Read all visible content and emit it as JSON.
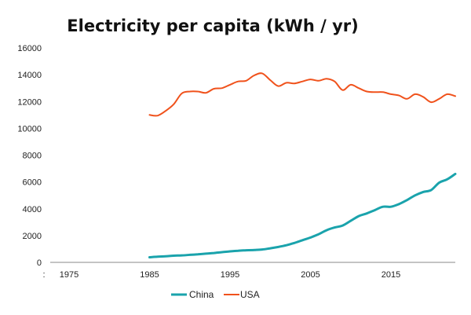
{
  "chart_data": {
    "type": "line",
    "title": "Electricity per capita (kWh / yr)",
    "xlabel": "",
    "ylabel": "",
    "xlim": [
      1972,
      2025
    ],
    "ylim": [
      0,
      16000
    ],
    "yticks": [
      0,
      2000,
      4000,
      6000,
      8000,
      10000,
      12000,
      14000,
      16000
    ],
    "ytick_labels": [
      "0",
      "2000",
      "4000",
      "6000",
      "8000",
      "10000",
      "12000",
      "14000",
      "16000"
    ],
    "xticks": [
      1972,
      1975,
      1985,
      1995,
      2005,
      2015
    ],
    "xtick_labels": [
      ":",
      "1975",
      "1985",
      "1995",
      "2005",
      "2015"
    ],
    "grid": false,
    "legend": {
      "placement": "bottom",
      "entries": [
        "China",
        "USA"
      ]
    },
    "series": [
      {
        "name": "China",
        "color": "#1aa3ac",
        "x": [
          1985,
          1986,
          1987,
          1988,
          1989,
          1990,
          1991,
          1992,
          1993,
          1994,
          1995,
          1996,
          1997,
          1998,
          1999,
          2000,
          2001,
          2002,
          2003,
          2004,
          2005,
          2006,
          2007,
          2008,
          2009,
          2010,
          2011,
          2012,
          2013,
          2014,
          2015,
          2016,
          2017,
          2018,
          2019,
          2020,
          2021,
          2022,
          2023
        ],
        "values": [
          380,
          420,
          450,
          500,
          520,
          560,
          600,
          650,
          700,
          760,
          820,
          870,
          900,
          920,
          960,
          1050,
          1150,
          1280,
          1450,
          1650,
          1850,
          2100,
          2400,
          2600,
          2750,
          3100,
          3450,
          3650,
          3900,
          4150,
          4150,
          4350,
          4650,
          5000,
          5250,
          5400,
          5950,
          6200,
          6600
        ]
      },
      {
        "name": "USA",
        "color": "#f0521c",
        "x": [
          1985,
          1986,
          1987,
          1988,
          1989,
          1990,
          1991,
          1992,
          1993,
          1994,
          1995,
          1996,
          1997,
          1998,
          1999,
          2000,
          2001,
          2002,
          2003,
          2004,
          2005,
          2006,
          2007,
          2008,
          2009,
          2010,
          2011,
          2012,
          2013,
          2014,
          2015,
          2016,
          2017,
          2018,
          2019,
          2020,
          2021,
          2022,
          2023
        ],
        "values": [
          11000,
          10950,
          11300,
          11800,
          12600,
          12750,
          12750,
          12650,
          12950,
          13000,
          13250,
          13500,
          13550,
          13950,
          14100,
          13600,
          13150,
          13400,
          13350,
          13500,
          13650,
          13550,
          13700,
          13500,
          12850,
          13250,
          13000,
          12750,
          12700,
          12700,
          12550,
          12450,
          12200,
          12550,
          12350,
          11950,
          12200,
          12550,
          12400
        ]
      }
    ]
  }
}
